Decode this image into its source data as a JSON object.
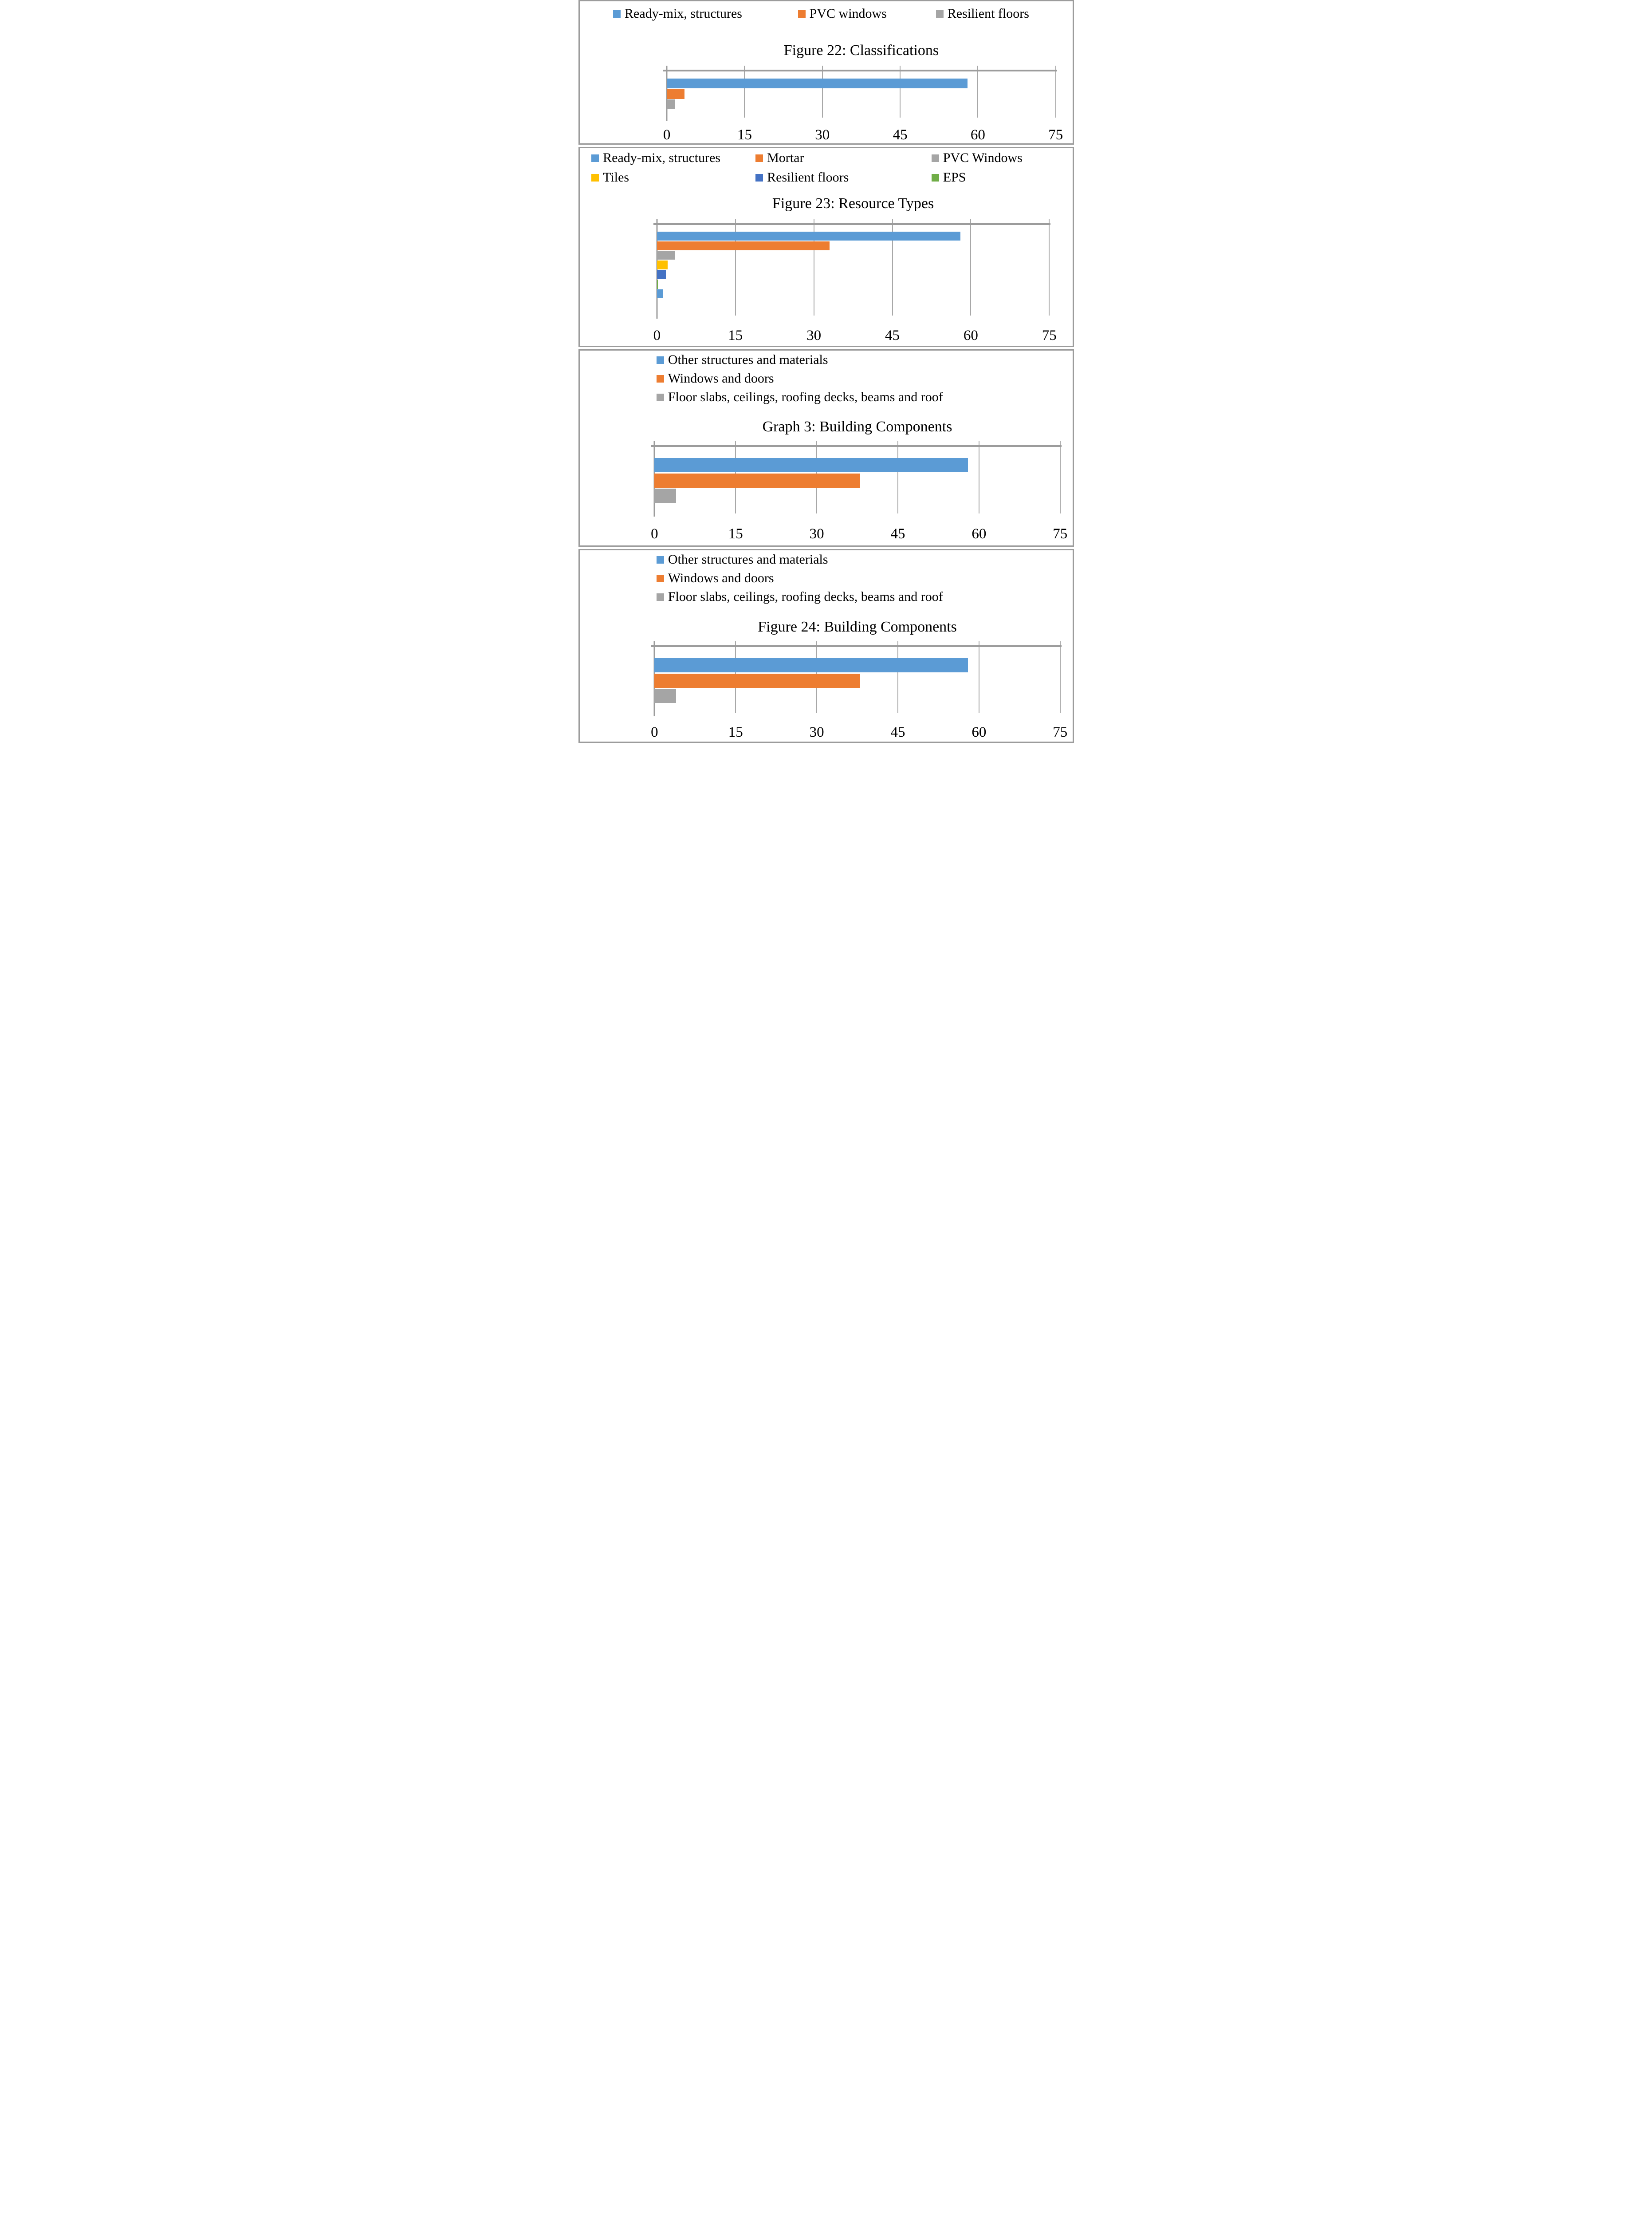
{
  "chart_data": [
    {
      "type": "bar",
      "orientation": "horizontal",
      "title": "Figure 22: Classifications",
      "xlim": [
        0,
        75
      ],
      "xticks": [
        "0",
        "15",
        "30",
        "45",
        "60",
        "75"
      ],
      "grid": true,
      "legend_position": "top",
      "legend": [
        {
          "label": "Ready-mix, structures",
          "color": "#5B9BD5"
        },
        {
          "label": "PVC windows",
          "color": "#ED7D31"
        },
        {
          "label": "Resilient floors",
          "color": "#A5A5A5"
        }
      ],
      "bars": [
        {
          "label": "Ready-mix, structures",
          "value": 58,
          "color": "#5B9BD5"
        },
        {
          "label": "PVC windows",
          "value": 3.4,
          "color": "#ED7D31"
        },
        {
          "label": "Resilient floors",
          "value": 1.6,
          "color": "#A5A5A5"
        }
      ]
    },
    {
      "type": "bar",
      "orientation": "horizontal",
      "title": "Figure 23: Resource Types",
      "xlim": [
        0,
        75
      ],
      "xticks": [
        "0",
        "15",
        "30",
        "45",
        "60",
        "75"
      ],
      "grid": true,
      "legend_position": "top",
      "legend": [
        {
          "label": "Ready-mix, structures",
          "color": "#5B9BD5"
        },
        {
          "label": "Mortar",
          "color": "#ED7D31"
        },
        {
          "label": "PVC Windows",
          "color": "#A5A5A5"
        },
        {
          "label": "Tiles",
          "color": "#FFC000"
        },
        {
          "label": "Resilient floors",
          "color": "#4472C4"
        },
        {
          "label": "EPS",
          "color": "#70AD47"
        }
      ],
      "bars": [
        {
          "label": "Ready-mix, structures",
          "value": 58,
          "color": "#5B9BD5"
        },
        {
          "label": "Mortar",
          "value": 33,
          "color": "#ED7D31"
        },
        {
          "label": "PVC Windows",
          "value": 3.4,
          "color": "#A5A5A5"
        },
        {
          "label": "Tiles",
          "value": 2,
          "color": "#FFC000"
        },
        {
          "label": "Resilient floors",
          "value": 1.7,
          "color": "#4472C4"
        },
        {
          "label": "EPS",
          "value": 0.2,
          "color": "#70AD47"
        },
        {
          "label": "unlabeled",
          "value": 1.1,
          "color": "#5B9BD5"
        }
      ]
    },
    {
      "type": "bar",
      "orientation": "horizontal",
      "title": "Graph 3: Building Components",
      "xlim": [
        0,
        75
      ],
      "xticks": [
        "0",
        "15",
        "30",
        "45",
        "60",
        "75"
      ],
      "grid": true,
      "legend_position": "top",
      "legend": [
        {
          "label": "Other structures and materials",
          "color": "#5B9BD5"
        },
        {
          "label": "Windows and doors",
          "color": "#ED7D31"
        },
        {
          "label": "Floor slabs, ceilings, roofing decks, beams and roof",
          "color": "#A5A5A5"
        }
      ],
      "bars": [
        {
          "label": "Other structures and materials",
          "value": 58,
          "color": "#5B9BD5"
        },
        {
          "label": "Windows and doors",
          "value": 38,
          "color": "#ED7D31"
        },
        {
          "label": "Floor slabs, ceilings, roofing decks, beams and roof",
          "value": 4,
          "color": "#A5A5A5"
        }
      ]
    },
    {
      "type": "bar",
      "orientation": "horizontal",
      "title": "Figure 24: Building Components",
      "xlim": [
        0,
        75
      ],
      "xticks": [
        "0",
        "15",
        "30",
        "45",
        "60",
        "75"
      ],
      "grid": true,
      "legend_position": "top",
      "legend": [
        {
          "label": "Other structures and materials",
          "color": "#5B9BD5"
        },
        {
          "label": "Windows and doors",
          "color": "#ED7D31"
        },
        {
          "label": "Floor slabs, ceilings, roofing decks, beams and roof",
          "color": "#A5A5A5"
        }
      ],
      "bars": [
        {
          "label": "Other structures and materials",
          "value": 58,
          "color": "#5B9BD5"
        },
        {
          "label": "Windows and doors",
          "value": 38,
          "color": "#ED7D31"
        },
        {
          "label": "Floor slabs, ceilings, roofing decks, beams and roof",
          "value": 4,
          "color": "#A5A5A5"
        }
      ]
    }
  ],
  "styles": {
    "grid_color": "#A8A8A8",
    "axis_color": "#9C9C9C",
    "panel_border_color": "#9C9C9C"
  }
}
